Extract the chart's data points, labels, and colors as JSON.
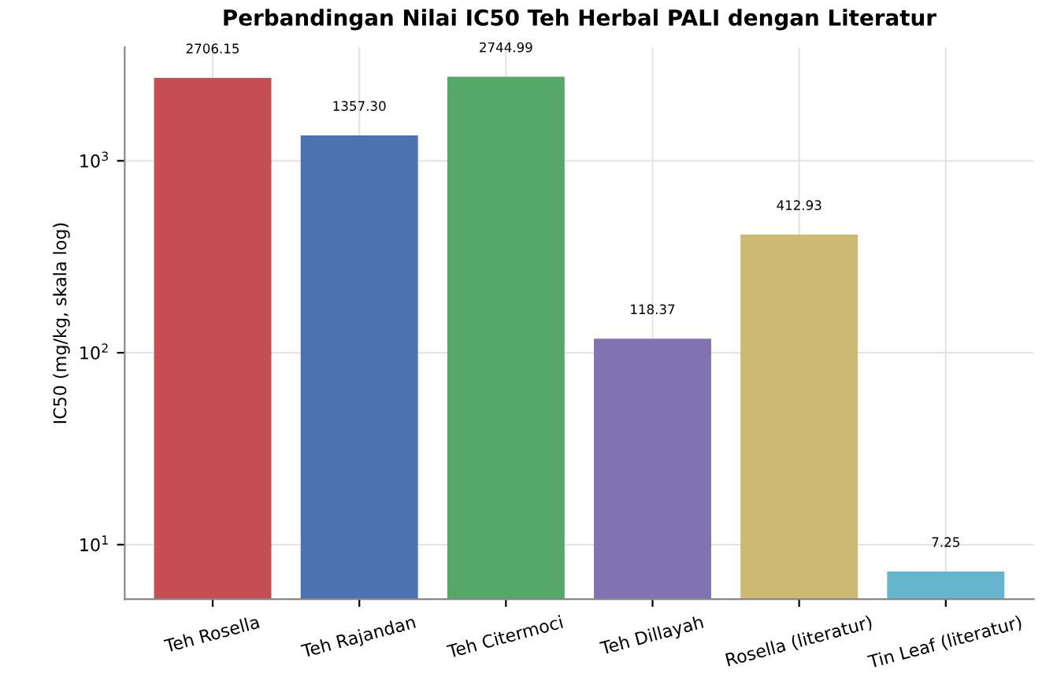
{
  "chart_data": {
    "type": "bar",
    "title": "Perbandingan Nilai IC50 Teh Herbal PALI dengan Literatur",
    "ylabel": "IC50 (mg/kg, skala log)",
    "categories": [
      "Teh Rosella",
      "Teh Rajandan",
      "Teh Citermoci",
      "Teh Dillayah",
      "Rosella (literatur)",
      "Tin Leaf (literatur)"
    ],
    "values": [
      2706.15,
      1357.3,
      2744.99,
      118.37,
      412.93,
      7.25
    ],
    "value_labels": [
      "2706.15",
      "1357.30",
      "2744.99",
      "118.37",
      "412.93",
      "7.25"
    ],
    "colors": [
      "#c44e52",
      "#4c72b0",
      "#55a868",
      "#8172b2",
      "#ccb974",
      "#64b5cd"
    ],
    "log": true,
    "ylim": [
      5.2,
      3900
    ],
    "yticks": [
      {
        "value": 10,
        "label": "10$^{1}$"
      },
      {
        "value": 100,
        "label": "10$^{2}$"
      },
      {
        "value": 1000,
        "label": "10$^{3}$"
      }
    ],
    "grid": true
  }
}
